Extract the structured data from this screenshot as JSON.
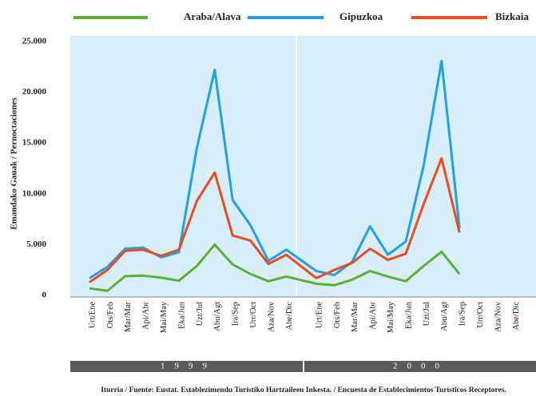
{
  "chart_data": {
    "type": "line",
    "y_label": "Emandako Gauak / Pernoctaciones",
    "categories": [
      "Urt/Ene",
      "Ots/Feb",
      "Mar/Mar",
      "Api/Abr",
      "Mai/May",
      "Eka/Jun",
      "Uzt/Jul",
      "Abu/Agt",
      "Ira/Sep",
      "Urr/Oct",
      "Aza/Nov",
      "Abe/Dic",
      "Urt/Ene",
      "Ots/Feb",
      "Mar/Mar",
      "Api/Abr",
      "Mai/May",
      "Eka/Jun",
      "Uzt/Jul",
      "Abu/Agt",
      "Ira/Sep",
      "Urr/Oct",
      "Aza/Nov",
      "Abe/Dic"
    ],
    "year_groups": [
      "1999",
      "2000"
    ],
    "series": [
      {
        "name": "Araba/Alava",
        "color": "#5db131",
        "values": [
          700,
          450,
          1900,
          1950,
          1750,
          1450,
          2900,
          5000,
          3050,
          2100,
          1400,
          1850,
          1150,
          1000,
          1550,
          2400,
          1850,
          1400,
          2900,
          4300,
          2100,
          null,
          null,
          null
        ]
      },
      {
        "name": "Gipuzkoa",
        "color": "#1fa0e8",
        "values": [
          1700,
          2800,
          4600,
          4700,
          3750,
          4250,
          14500,
          22200,
          9400,
          6900,
          3400,
          4500,
          2400,
          2000,
          3300,
          6800,
          4000,
          5300,
          12800,
          23100,
          6600,
          null,
          null,
          null
        ]
      },
      {
        "name": "Bizkaia",
        "color": "#ef4a1a",
        "values": [
          1300,
          2500,
          4400,
          4500,
          3900,
          4500,
          9300,
          12100,
          5900,
          5400,
          3100,
          4000,
          1700,
          2500,
          3200,
          4600,
          3500,
          4100,
          9000,
          13500,
          6200,
          null,
          null,
          null
        ]
      }
    ],
    "ylim": [
      0,
      25000
    ],
    "yticks": [
      0,
      {
        "value": 5000,
        "label": "5.000"
      },
      {
        "value": 10000,
        "label": "10.000"
      },
      {
        "value": 15000,
        "label": "15.000"
      },
      {
        "value": 20000,
        "label": "20.000"
      },
      {
        "value": 25000,
        "label": "25.000"
      }
    ],
    "source": "Iturria / Fuente: Eustat. Establezimendu Turistiko Hartzaileen Inkesta. / Encuesta de Establecimientos Turísticos Receptores."
  }
}
